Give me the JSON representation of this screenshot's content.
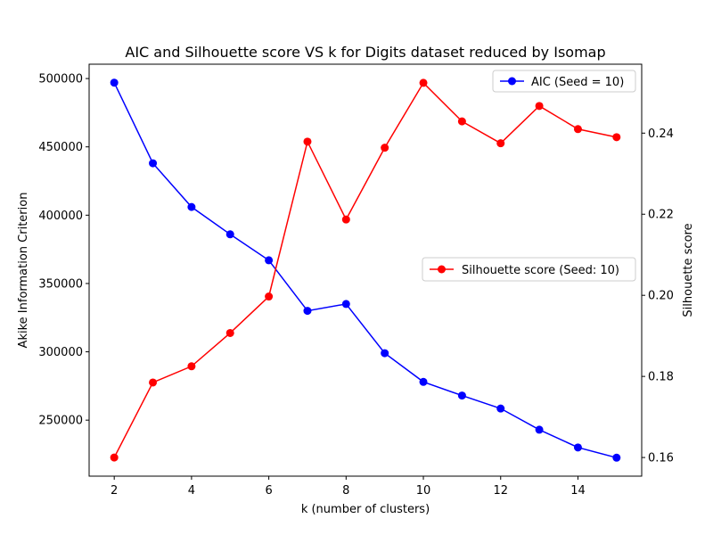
{
  "chart_data": {
    "type": "line",
    "title": "AIC and Silhouette score VS k for Digits dataset reduced by Isomap",
    "xlabel": "k (number of clusters)",
    "ylabel_left": "Akike Information Criterion",
    "ylabel_right": "Silhouette score",
    "x": [
      2,
      3,
      4,
      5,
      6,
      7,
      8,
      9,
      10,
      11,
      12,
      13,
      14,
      15
    ],
    "x_ticks": [
      2,
      4,
      6,
      8,
      10,
      12,
      14
    ],
    "x_tick_labels": [
      "2",
      "4",
      "6",
      "8",
      "10",
      "12",
      "14"
    ],
    "xlim": [
      1.35,
      15.65
    ],
    "left_axis": {
      "ylim": [
        209000,
        510500
      ],
      "ticks": [
        250000,
        300000,
        350000,
        400000,
        450000,
        500000
      ],
      "tick_labels": [
        "250000",
        "300000",
        "350000",
        "400000",
        "450000",
        "500000"
      ]
    },
    "right_axis": {
      "ylim": [
        0.1554,
        0.257
      ],
      "ticks": [
        0.16,
        0.18,
        0.2,
        0.22,
        0.24
      ],
      "tick_labels": [
        "0.16",
        "0.18",
        "0.20",
        "0.22",
        "0.24"
      ]
    },
    "series": [
      {
        "name": "AIC (Seed = 10)",
        "axis": "left",
        "color": "#0000ff",
        "values": [
          497000,
          438000,
          406000,
          386000,
          367000,
          330000,
          335000,
          299000,
          278000,
          268000,
          258500,
          243000,
          230000,
          222500
        ]
      },
      {
        "name": "Silhouette score (Seed: 10)",
        "axis": "right",
        "color": "#ff0000",
        "values": [
          0.16,
          0.1785,
          0.1825,
          0.1907,
          0.1997,
          0.2379,
          0.2187,
          0.2364,
          0.2524,
          0.2429,
          0.2375,
          0.2467,
          0.241,
          0.239
        ]
      }
    ],
    "legends": [
      {
        "position": "top-right",
        "series": 0
      },
      {
        "position": "center-right",
        "series": 1
      }
    ],
    "grid": false
  }
}
